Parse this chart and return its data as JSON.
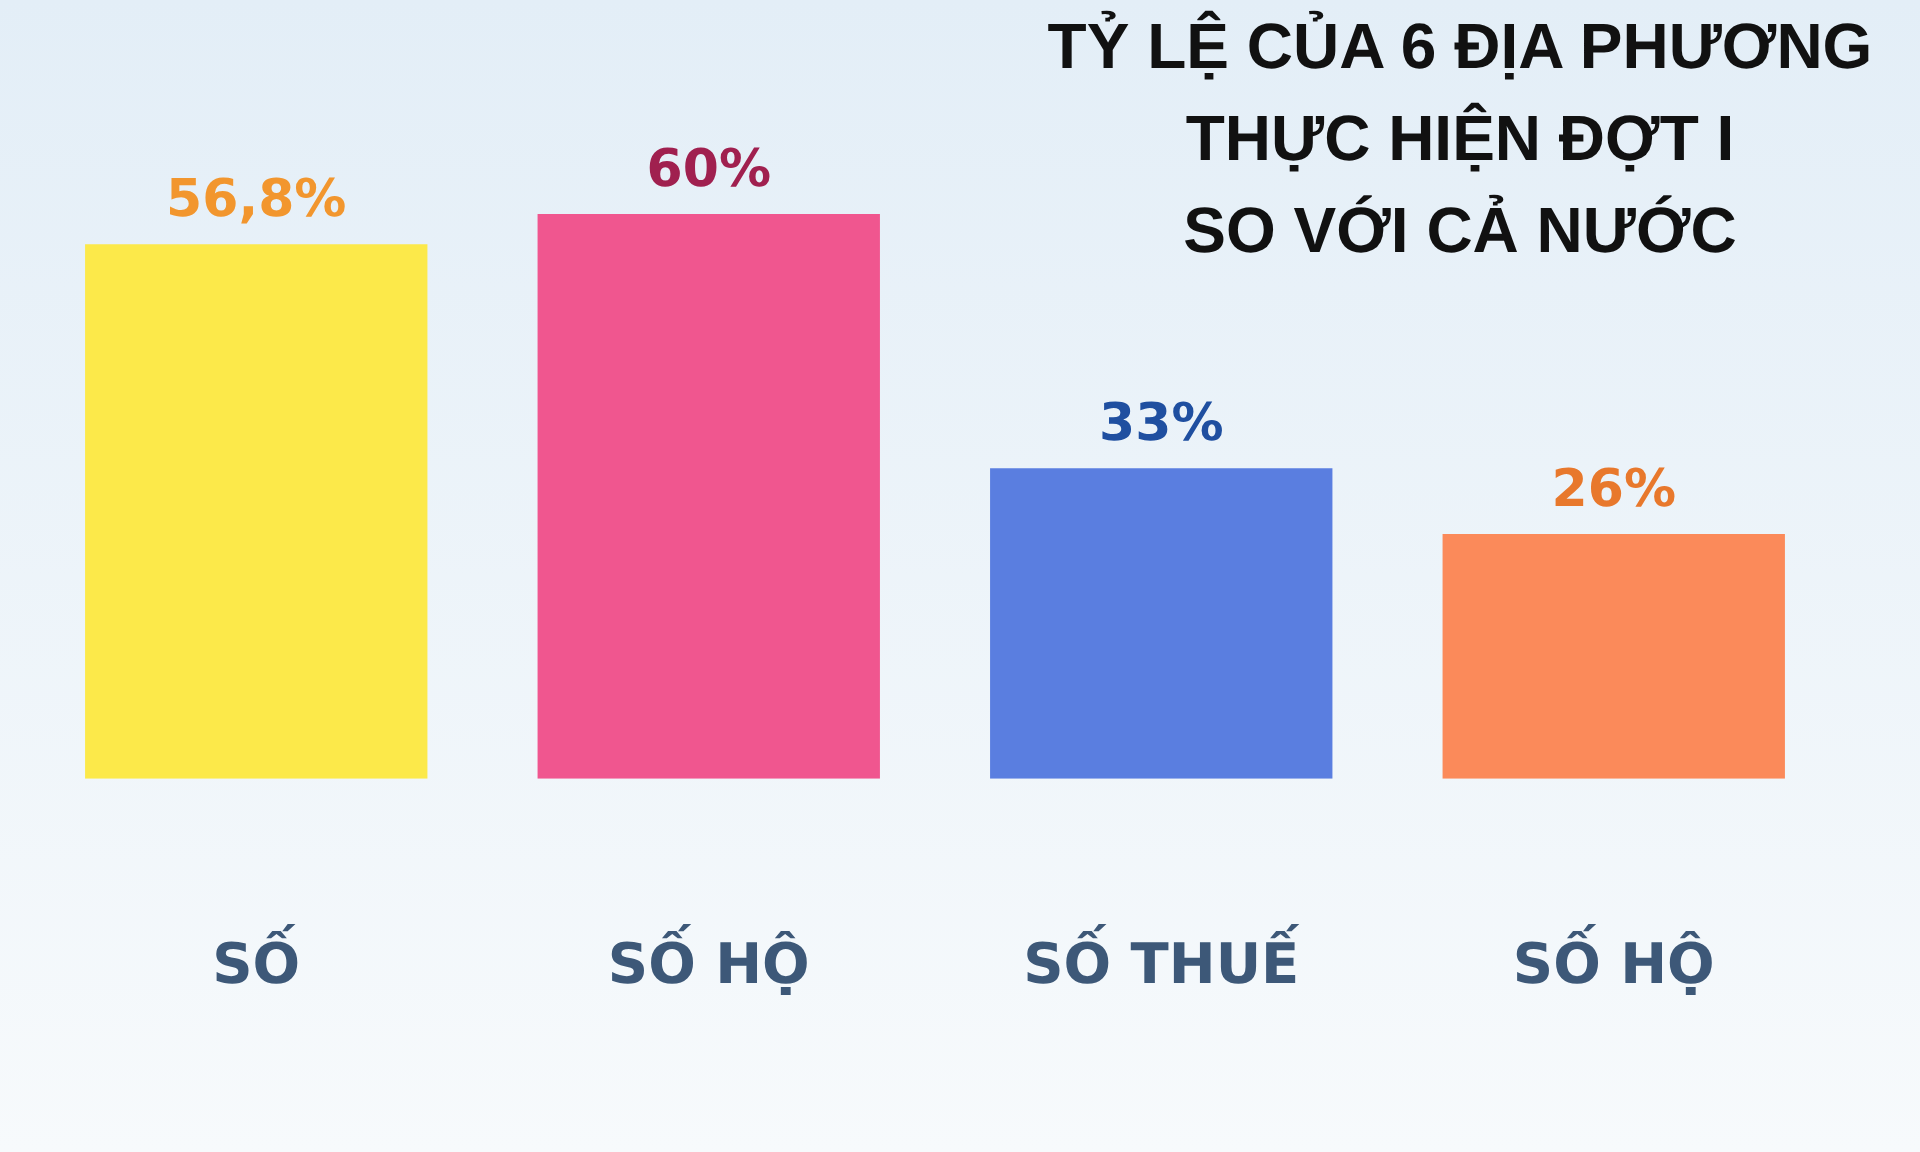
{
  "chart_data": {
    "type": "bar",
    "title": "TỶ LỆ CỦA 6 ĐỊA PHƯƠNG\nTHỰC HIỆN ĐỢT I\nSO VỚI CẢ NƯỚC",
    "categories": [
      "SỐ",
      "SỐ HỘ",
      "SỐ THUẾ",
      "SỐ HỘ"
    ],
    "values": [
      56.8,
      60,
      33,
      26
    ],
    "colors": [
      "#fce94a",
      "#f0568f",
      "#5a7ee0",
      "#fb8a5a"
    ],
    "value_labels": [
      "56,8%",
      "60%",
      "33%",
      "26%"
    ]
  }
}
